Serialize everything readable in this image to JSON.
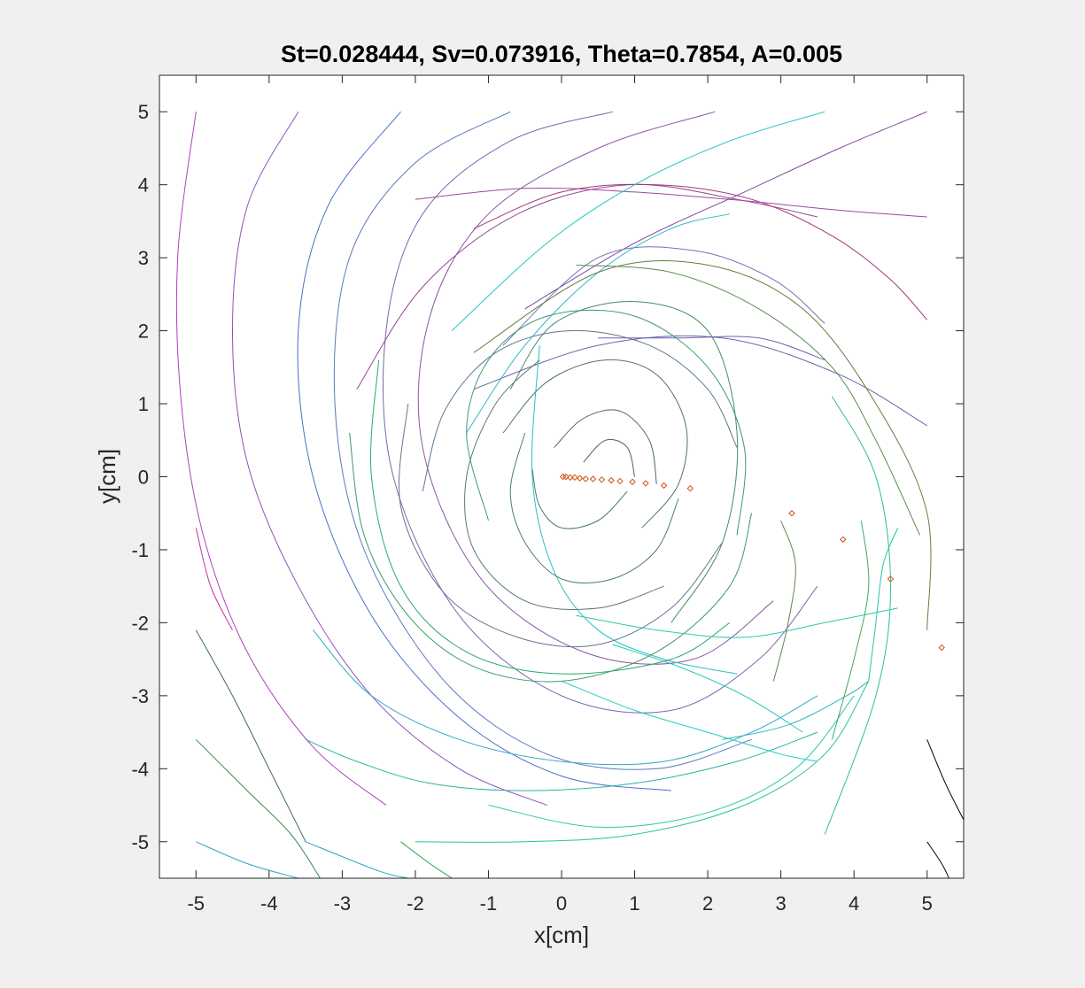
{
  "chart_data": {
    "type": "line",
    "title": "St=0.028444, Sv=0.073916, Theta=0.7854, A=0.005",
    "xlabel": "x[cm]",
    "ylabel": "y[cm]",
    "xlim": [
      -5.5,
      5.5
    ],
    "ylim": [
      -5.5,
      5.5
    ],
    "xticks": [
      -5,
      -4,
      -3,
      -2,
      -1,
      0,
      1,
      2,
      3,
      4,
      5
    ],
    "yticks": [
      -5,
      -4,
      -3,
      -2,
      -1,
      0,
      1,
      2,
      3,
      4,
      5
    ],
    "xtick_labels": [
      "-5",
      "-4",
      "-3",
      "-2",
      "-1",
      "0",
      "1",
      "2",
      "3",
      "4",
      "5"
    ],
    "ytick_labels": [
      "-5",
      "-4",
      "-3",
      "-2",
      "-1",
      "0",
      "1",
      "2",
      "3",
      "4",
      "5"
    ],
    "grid": false,
    "legend": "none",
    "series": [
      {
        "color": "#b040c0",
        "x": [
          -5.0,
          -5.25,
          -5.2,
          -4.9,
          -4.3,
          -3.4,
          -2.4
        ],
        "y": [
          5.0,
          3.0,
          1.0,
          -0.8,
          -2.4,
          -3.7,
          -4.5
        ]
      },
      {
        "color": "#9050b8",
        "x": [
          -3.6,
          -4.3,
          -4.5,
          -4.3,
          -3.6,
          -2.6,
          -1.4,
          -0.2
        ],
        "y": [
          5.0,
          3.7,
          2.0,
          0.2,
          -1.5,
          -3.0,
          -4.0,
          -4.5
        ]
      },
      {
        "color": "#4a70c8",
        "x": [
          -2.2,
          -3.2,
          -3.6,
          -3.4,
          -2.6,
          -1.4,
          0.0,
          1.5
        ],
        "y": [
          5.0,
          3.7,
          2.0,
          0.0,
          -1.9,
          -3.3,
          -4.1,
          -4.3
        ]
      },
      {
        "color": "#5a78c0",
        "x": [
          -0.7,
          -2.0,
          -2.9,
          -3.1,
          -2.7,
          -1.6,
          -0.2,
          1.3,
          2.6
        ],
        "y": [
          5.0,
          4.3,
          3.0,
          1.0,
          -1.0,
          -2.8,
          -3.8,
          -4.0,
          -3.6
        ]
      },
      {
        "color": "#7868b0",
        "x": [
          0.7,
          -0.7,
          -1.9,
          -2.4,
          -2.3,
          -1.4,
          0.0,
          1.5,
          2.7,
          3.5
        ],
        "y": [
          5.0,
          4.6,
          3.6,
          2.0,
          0.0,
          -1.9,
          -3.0,
          -3.2,
          -2.5,
          -1.5
        ]
      },
      {
        "color": "#8a58a8",
        "x": [
          2.1,
          0.5,
          -1.0,
          -1.8,
          -1.9,
          -1.1,
          0.3,
          1.8,
          2.9
        ],
        "y": [
          5.0,
          4.5,
          3.6,
          2.2,
          0.4,
          -1.4,
          -2.4,
          -2.5,
          -1.7
        ]
      },
      {
        "color": "#9a4898",
        "x": [
          -2.8,
          -1.9,
          -0.6,
          0.9,
          2.4,
          3.5
        ],
        "y": [
          1.2,
          2.6,
          3.6,
          4.0,
          3.8,
          3.56
        ]
      },
      {
        "color": "#a03878",
        "x": [
          -1.2,
          0.0,
          1.3,
          2.6,
          3.7,
          4.5,
          5.0
        ],
        "y": [
          3.4,
          3.9,
          4.0,
          3.8,
          3.3,
          2.7,
          2.15
        ]
      },
      {
        "color": "#a04898",
        "x": [
          -2.0,
          -0.5,
          1.0,
          2.5,
          3.8,
          5.0
        ],
        "y": [
          3.8,
          3.95,
          3.9,
          3.78,
          3.65,
          3.56
        ]
      },
      {
        "color": "#8048a0",
        "x": [
          -0.5,
          1.0,
          2.5,
          3.8,
          5.0
        ],
        "y": [
          2.3,
          3.2,
          3.9,
          4.5,
          5.0
        ]
      },
      {
        "color": "#6878b0",
        "x": [
          -0.8,
          0.5,
          1.8,
          2.9,
          3.6
        ],
        "y": [
          1.8,
          3.0,
          3.1,
          2.7,
          2.1
        ]
      },
      {
        "color": "#6868a8",
        "x": [
          -1.2,
          0.5,
          2.2,
          3.8,
          5.0
        ],
        "y": [
          1.2,
          1.8,
          1.9,
          1.4,
          0.7
        ]
      },
      {
        "color": "#20c8c0",
        "x": [
          -1.5,
          -0.2,
          1.0,
          2.3,
          3.6
        ],
        "y": [
          2.0,
          3.2,
          4.0,
          4.6,
          5.0
        ]
      },
      {
        "color": "#30b8c8",
        "x": [
          -1.3,
          -0.5,
          0.5,
          1.5,
          2.3
        ],
        "y": [
          0.6,
          1.8,
          2.8,
          3.4,
          3.6
        ]
      },
      {
        "color": "#28c0c0",
        "x": [
          -0.3,
          -0.4,
          -0.1,
          0.5,
          1.4,
          2.4
        ],
        "y": [
          1.8,
          0.0,
          -1.3,
          -2.1,
          -2.5,
          -2.7
        ]
      },
      {
        "color": "#5a8a50",
        "x": [
          0.2,
          1.5,
          2.7,
          3.7,
          4.3,
          4.9
        ],
        "y": [
          2.9,
          2.8,
          2.3,
          1.5,
          0.5,
          -0.8
        ]
      },
      {
        "color": "#6a7a40",
        "x": [
          -1.2,
          0.5,
          2.0,
          3.3,
          4.3,
          5.0,
          5.0
        ],
        "y": [
          1.7,
          2.8,
          2.9,
          2.3,
          1.0,
          -0.5,
          -2.1
        ]
      },
      {
        "color": "#4a8a68",
        "x": [
          -0.7,
          -0.1,
          1.0,
          2.0,
          2.4,
          2.2,
          1.5
        ],
        "y": [
          1.2,
          2.1,
          2.4,
          2.0,
          0.6,
          -0.9,
          -2.0
        ]
      },
      {
        "color": "#3a9a78",
        "x": [
          -1.0,
          -1.3,
          -1.0,
          -0.2,
          1.0,
          2.0,
          2.5,
          2.4
        ],
        "y": [
          -0.6,
          0.6,
          1.6,
          2.2,
          2.2,
          1.5,
          0.4,
          -0.8
        ]
      },
      {
        "color": "#2aa870",
        "x": [
          -2.5,
          -2.6,
          -2.2,
          -1.3,
          0.0,
          1.5,
          2.3
        ],
        "y": [
          1.6,
          0.0,
          -1.5,
          -2.4,
          -2.7,
          -2.5,
          -2.0
        ]
      },
      {
        "color": "#3a9a60",
        "x": [
          -2.9,
          -2.7,
          -2.1,
          -1.2,
          0.0,
          1.3,
          2.3,
          2.6
        ],
        "y": [
          0.6,
          -0.8,
          -1.9,
          -2.6,
          -2.8,
          -2.4,
          -1.5,
          -0.5
        ]
      },
      {
        "color": "#5a7890",
        "x": [
          -1.9,
          -1.6,
          -0.9,
          0.1,
          1.2,
          2.0,
          2.4
        ],
        "y": [
          -0.2,
          0.9,
          1.7,
          2.0,
          1.8,
          1.2,
          0.4
        ]
      },
      {
        "color": "#607890",
        "x": [
          -2.1,
          -2.2,
          -1.6,
          -0.6,
          0.5,
          1.5,
          2.2
        ],
        "y": [
          1.0,
          -0.4,
          -1.6,
          -2.2,
          -2.3,
          -1.8,
          -0.9
        ]
      },
      {
        "color": "#5a7878",
        "x": [
          -0.3,
          -0.9,
          -1.3,
          -1.2,
          -0.5,
          0.5,
          1.4
        ],
        "y": [
          1.6,
          1.0,
          0.0,
          -1.0,
          -1.7,
          -1.8,
          -1.5
        ]
      },
      {
        "color": "#507070",
        "x": [
          -0.8,
          -0.2,
          0.6,
          1.3,
          1.7,
          1.6,
          1.1
        ],
        "y": [
          0.6,
          1.3,
          1.6,
          1.4,
          0.7,
          -0.1,
          -0.7
        ]
      },
      {
        "color": "#4a8070",
        "x": [
          -0.5,
          -0.7,
          -0.5,
          0.0,
          0.7,
          1.3,
          1.6
        ],
        "y": [
          0.6,
          -0.2,
          -0.9,
          -1.4,
          -1.4,
          -1.0,
          -0.3
        ]
      },
      {
        "color": "#486868",
        "x": [
          -0.1,
          0.3,
          0.8,
          1.2,
          1.3
        ],
        "y": [
          0.4,
          0.8,
          0.9,
          0.5,
          -0.1
        ]
      },
      {
        "color": "#507868",
        "x": [
          -0.4,
          -0.3,
          0.0,
          0.5,
          0.9
        ],
        "y": [
          0.1,
          -0.4,
          -0.7,
          -0.6,
          -0.2
        ]
      },
      {
        "color": "#486060",
        "x": [
          0.3,
          0.6,
          0.9,
          1.0
        ],
        "y": [
          0.2,
          0.5,
          0.4,
          0.0
        ]
      },
      {
        "color": "#2ab0a0",
        "x": [
          -3.5,
          -2.8,
          -1.8,
          -0.5,
          1.0,
          2.4,
          3.5
        ],
        "y": [
          -3.6,
          -3.9,
          -4.2,
          -4.3,
          -4.2,
          -3.9,
          -3.5
        ]
      },
      {
        "color": "#30a8c0",
        "x": [
          -3.4,
          -2.6,
          -1.4,
          0.0,
          1.4,
          2.6,
          3.5
        ],
        "y": [
          -2.1,
          -3.0,
          -3.6,
          -3.9,
          -3.9,
          -3.5,
          -3.0
        ]
      },
      {
        "color": "#20c890",
        "x": [
          -2.0,
          -0.5,
          1.0,
          2.5,
          3.6,
          4.2
        ],
        "y": [
          -5.0,
          -5.0,
          -4.9,
          -4.5,
          -3.8,
          -2.8
        ]
      },
      {
        "color": "#28c8a8",
        "x": [
          -1.0,
          0.5,
          2.0,
          3.2,
          4.0
        ],
        "y": [
          -4.5,
          -4.8,
          -4.6,
          -4.0,
          -3.0
        ]
      },
      {
        "color": "#20d0c0",
        "x": [
          0.0,
          1.0,
          2.0,
          3.0,
          3.5
        ],
        "y": [
          -2.8,
          -3.2,
          -3.5,
          -3.8,
          -3.9
        ]
      },
      {
        "color": "#30c8b0",
        "x": [
          0.2,
          1.3,
          2.5,
          3.6,
          4.6
        ],
        "y": [
          -1.9,
          -2.1,
          -2.2,
          -2.0,
          -1.8
        ]
      },
      {
        "color": "#20c8b8",
        "x": [
          0.7,
          1.6,
          2.5,
          3.3
        ],
        "y": [
          -2.3,
          -2.6,
          -3.0,
          -3.5
        ]
      },
      {
        "color": "#30b8b8",
        "x": [
          2.2,
          3.1,
          3.9,
          4.2
        ],
        "y": [
          -3.6,
          -3.4,
          -3.0,
          -2.8
        ]
      },
      {
        "color": "#28c098",
        "x": [
          3.7,
          4.3,
          4.5,
          4.3,
          3.6
        ],
        "y": [
          1.1,
          0.0,
          -1.5,
          -3.0,
          -4.9
        ]
      },
      {
        "color": "#20c8a0",
        "x": [
          4.6,
          4.4,
          4.3,
          4.2
        ],
        "y": [
          -0.7,
          -1.2,
          -2.0,
          -2.8
        ]
      },
      {
        "color": "#40a860",
        "x": [
          4.1,
          4.2,
          4.0,
          3.7
        ],
        "y": [
          -0.6,
          -1.5,
          -2.5,
          -3.6
        ]
      },
      {
        "color": "#5a8850",
        "x": [
          3.0,
          3.2,
          3.1,
          2.9
        ],
        "y": [
          -0.6,
          -1.2,
          -2.0,
          -2.8
        ]
      },
      {
        "color": "#3a6a70",
        "x": [
          -5.0,
          -4.5,
          -4.0,
          -3.5
        ],
        "y": [
          -2.1,
          -3.0,
          -4.0,
          -5.0
        ]
      },
      {
        "color": "#3a8a50",
        "x": [
          -5.0,
          -4.3,
          -3.7,
          -3.3
        ],
        "y": [
          -3.6,
          -4.3,
          -4.9,
          -5.5
        ]
      },
      {
        "color": "#30a0c8",
        "x": [
          -5.0,
          -4.3,
          -3.6
        ],
        "y": [
          -5.0,
          -5.3,
          -5.5
        ]
      },
      {
        "color": "#30a0c0",
        "x": [
          -3.5,
          -2.5,
          -2.1
        ],
        "y": [
          -5.0,
          -5.4,
          -5.5
        ]
      },
      {
        "color": "#2aa040",
        "x": [
          -2.2,
          -1.8,
          -1.5
        ],
        "y": [
          -5.0,
          -5.3,
          -5.5
        ]
      },
      {
        "color": "#c030a0",
        "x": [
          -5.0,
          -4.8,
          -4.5
        ],
        "y": [
          -0.7,
          -1.5,
          -2.1
        ]
      },
      {
        "color": "#000000",
        "x": [
          5.0,
          5.25,
          5.5
        ],
        "y": [
          -3.6,
          -4.2,
          -4.7
        ]
      },
      {
        "color": "#000000",
        "x": [
          5.0,
          5.2,
          5.3
        ],
        "y": [
          -5.0,
          -5.3,
          -5.5
        ]
      },
      {
        "color": "#7060b0",
        "x": [
          0.5,
          1.6,
          2.7,
          3.6
        ],
        "y": [
          1.9,
          1.9,
          1.9,
          1.6
        ]
      }
    ],
    "markers": {
      "color": "#d05010",
      "shape": "diamond",
      "x": [
        0.02,
        0.06,
        0.12,
        0.18,
        0.25,
        0.33,
        0.43,
        0.55,
        0.68,
        0.8,
        0.97,
        1.15,
        1.4,
        1.76,
        3.15,
        3.85,
        4.5,
        5.2
      ],
      "y": [
        0.0,
        0.0,
        -0.01,
        -0.01,
        -0.02,
        -0.03,
        -0.03,
        -0.04,
        -0.05,
        -0.06,
        -0.07,
        -0.09,
        -0.12,
        -0.16,
        -0.5,
        -0.86,
        -1.4,
        -2.34
      ]
    }
  }
}
